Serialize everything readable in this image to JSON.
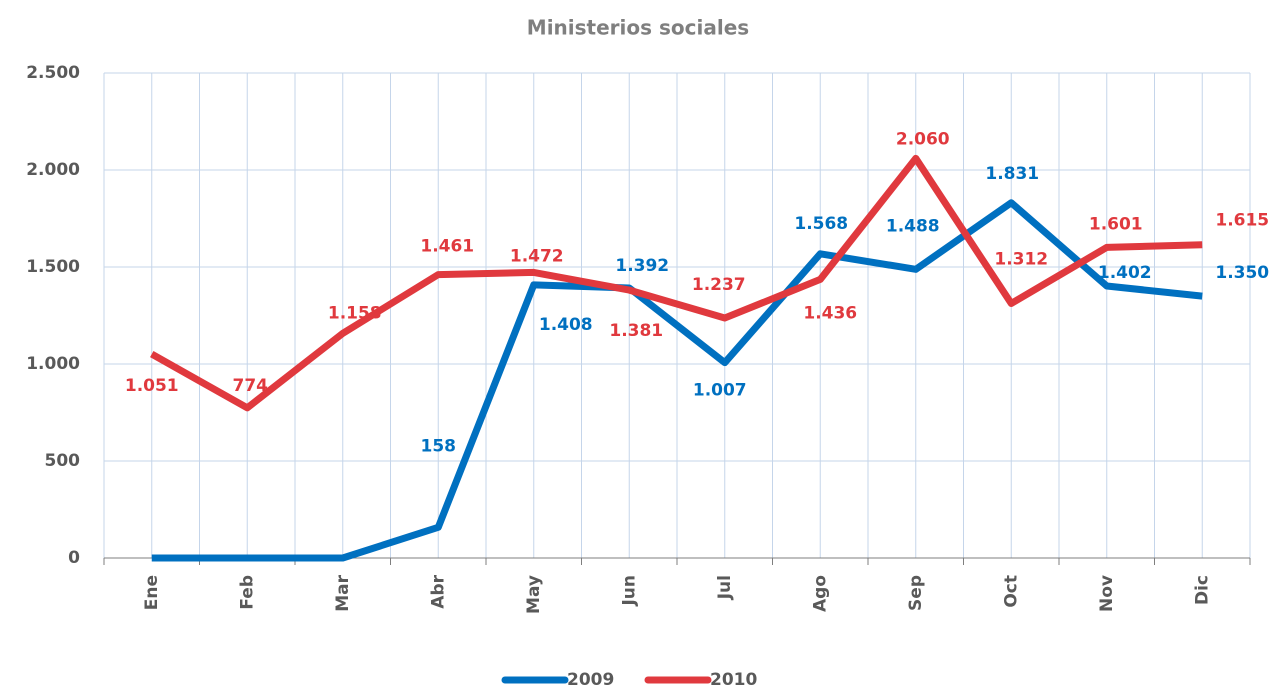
{
  "chart_data": {
    "type": "line",
    "title": "Ministerios sociales",
    "categories": [
      "Ene",
      "Feb",
      "Mar",
      "Abr",
      "May",
      "Jun",
      "Jul",
      "Ago",
      "Sep",
      "Oct",
      "Nov",
      "Dic"
    ],
    "series": [
      {
        "name": "2009",
        "color": "#0070c0",
        "values": [
          0,
          0,
          0,
          158,
          1408,
          1392,
          1007,
          1568,
          1488,
          1831,
          1402,
          1350
        ],
        "value_labels": [
          null,
          null,
          null,
          "158",
          "1.408",
          "1.392",
          "1.007",
          "1.568",
          "1.488",
          "1.831",
          "1.402",
          "1.350"
        ]
      },
      {
        "name": "2010",
        "color": "#e0393e",
        "values": [
          1051,
          774,
          1158,
          1461,
          1472,
          1381,
          1237,
          1436,
          2060,
          1312,
          1601,
          1615
        ],
        "value_labels": [
          "1.051",
          "774",
          "1.158",
          "1.461",
          "1.472",
          "1.381",
          "1.237",
          "1.436",
          "2.060",
          "1.312",
          "1.601",
          "1.615"
        ]
      }
    ],
    "ylim": [
      0,
      2500
    ],
    "yticks": [
      0,
      500,
      {
        "value": 1000,
        "label": "1.000"
      },
      {
        "value": 1500,
        "label": "1.500"
      },
      {
        "value": 2000,
        "label": "2.000"
      },
      {
        "value": 2500,
        "label": "2.500"
      }
    ],
    "grid": true,
    "legend": "bottom"
  }
}
